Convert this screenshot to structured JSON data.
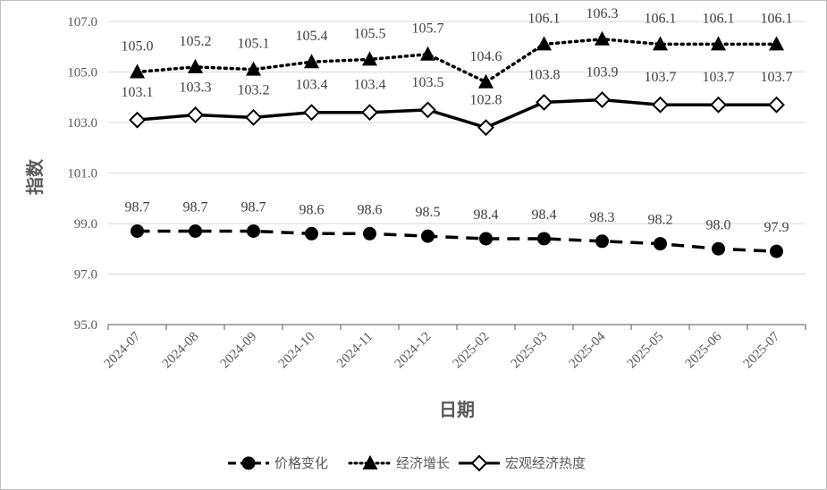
{
  "chart_data": {
    "type": "line",
    "xlabel": "日期",
    "ylabel": "指数",
    "ylim": [
      95.0,
      107.0
    ],
    "yticks": [
      "95.0",
      "97.0",
      "99.0",
      "101.0",
      "103.0",
      "105.0",
      "107.0"
    ],
    "grid": "horizontal",
    "legend_position": "bottom",
    "categories": [
      "2024-07",
      "2024-08",
      "2024-09",
      "2024-10",
      "2024-11",
      "2024-12",
      "2025-02",
      "2025-03",
      "2025-04",
      "2025-05",
      "2025-06",
      "2025-07"
    ],
    "series": [
      {
        "name": "价格变化",
        "style": "dashed",
        "marker": "circle-filled",
        "color": "#000000",
        "values": [
          98.7,
          98.7,
          98.7,
          98.6,
          98.6,
          98.5,
          98.4,
          98.4,
          98.3,
          98.2,
          98.0,
          97.9
        ],
        "labels": [
          "98.7",
          "98.7",
          "98.7",
          "98.6",
          "98.6",
          "98.5",
          "98.4",
          "98.4",
          "98.3",
          "98.2",
          "98.0",
          "97.9"
        ]
      },
      {
        "name": "经济增长",
        "style": "dotted",
        "marker": "triangle-filled",
        "color": "#000000",
        "values": [
          105.0,
          105.2,
          105.1,
          105.4,
          105.5,
          105.7,
          104.6,
          106.1,
          106.3,
          106.1,
          106.1,
          106.1
        ],
        "labels": [
          "105.0",
          "105.2",
          "105.1",
          "105.4",
          "105.5",
          "105.7",
          "104.6",
          "106.1",
          "106.3",
          "106.1",
          "106.1",
          "106.1"
        ]
      },
      {
        "name": "宏观经济热度",
        "style": "solid",
        "marker": "diamond-open",
        "color": "#000000",
        "values": [
          103.1,
          103.3,
          103.2,
          103.4,
          103.4,
          103.5,
          102.8,
          103.8,
          103.9,
          103.7,
          103.7,
          103.7
        ],
        "labels": [
          "103.1",
          "103.3",
          "103.2",
          "103.4",
          "103.4",
          "103.5",
          "102.8",
          "103.8",
          "103.9",
          "103.7",
          "103.7",
          "103.7"
        ]
      }
    ]
  }
}
